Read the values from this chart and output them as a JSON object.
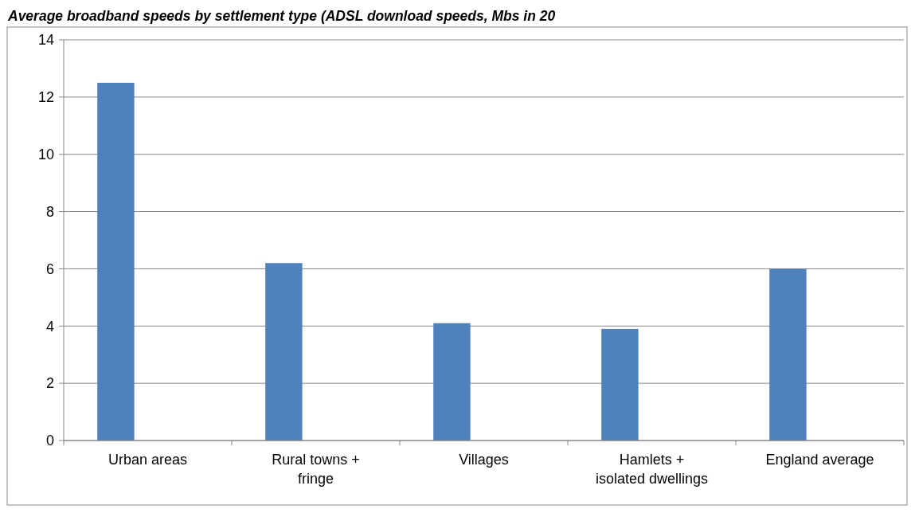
{
  "chart_data": {
    "type": "bar",
    "title": "Average broadband speeds by settlement type (ADSL download speeds, Mbs in 20",
    "categories": [
      "Urban areas",
      "Rural towns + fringe",
      "Villages",
      "Hamlets + isolated dwellings",
      "England average"
    ],
    "values": [
      12.5,
      6.2,
      4.1,
      3.9,
      6.0
    ],
    "color": "#4f81bd",
    "ylim": [
      0,
      14
    ],
    "yticks": [
      0,
      2,
      4,
      6,
      8,
      10,
      12,
      14
    ],
    "grid": "y"
  }
}
